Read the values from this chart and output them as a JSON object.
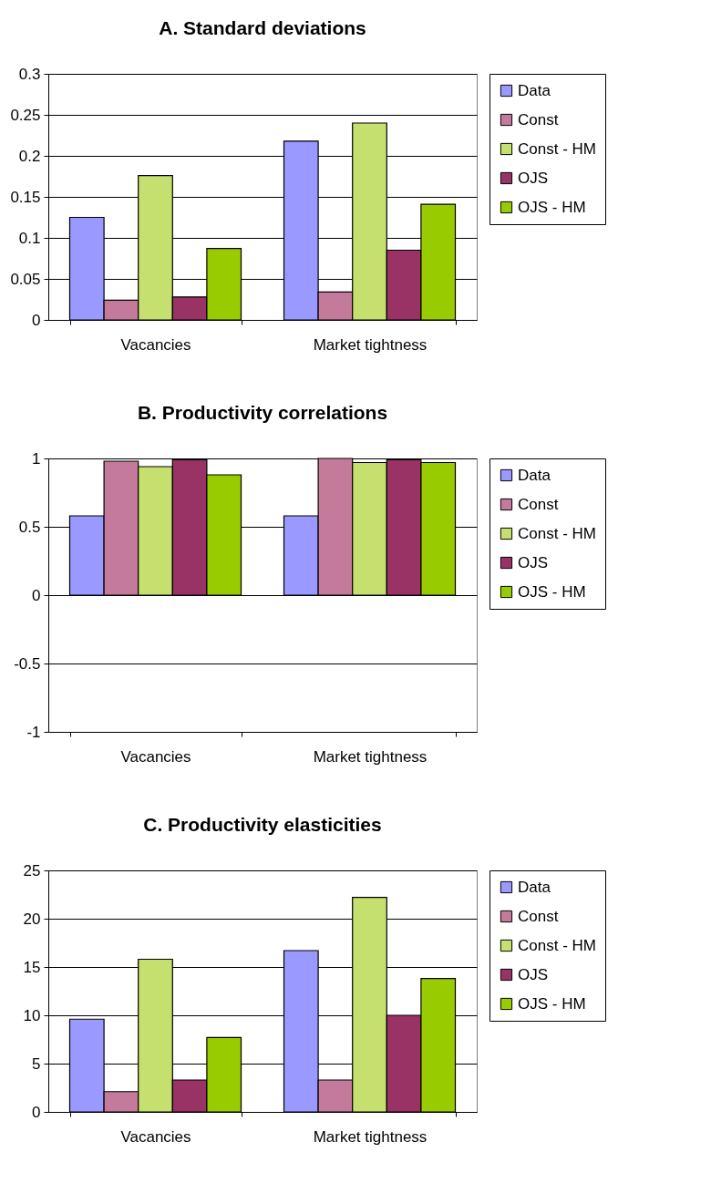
{
  "chart_data": [
    {
      "type": "bar",
      "title": "A. Standard deviations",
      "categories": [
        "Vacancies",
        "Market tightness"
      ],
      "series": [
        {
          "name": "Data",
          "color": "#9999ff",
          "values": [
            0.125,
            0.218
          ]
        },
        {
          "name": "Const",
          "color": "#c47a9b",
          "values": [
            0.024,
            0.034
          ]
        },
        {
          "name": "Const - HM",
          "color": "#c6e070",
          "values": [
            0.176,
            0.24
          ]
        },
        {
          "name": "OJS",
          "color": "#993366",
          "values": [
            0.028,
            0.085
          ]
        },
        {
          "name": "OJS - HM",
          "color": "#99cc00",
          "values": [
            0.087,
            0.141
          ]
        }
      ],
      "ylim": [
        0,
        0.3
      ],
      "yticks": [
        0,
        0.05,
        0.1,
        0.15,
        0.2,
        0.25,
        0.3
      ],
      "grid": "y",
      "legend": "right"
    },
    {
      "type": "bar",
      "title": "B. Productivity correlations",
      "categories": [
        "Vacancies",
        "Market tightness"
      ],
      "series": [
        {
          "name": "Data",
          "color": "#9999ff",
          "values": [
            0.58,
            0.58
          ]
        },
        {
          "name": "Const",
          "color": "#c47a9b",
          "values": [
            0.98,
            1.0
          ]
        },
        {
          "name": "Const - HM",
          "color": "#c6e070",
          "values": [
            0.94,
            0.97
          ]
        },
        {
          "name": "OJS",
          "color": "#993366",
          "values": [
            0.99,
            0.99
          ]
        },
        {
          "name": "OJS - HM",
          "color": "#99cc00",
          "values": [
            0.88,
            0.97
          ]
        }
      ],
      "ylim": [
        -1,
        1
      ],
      "yticks": [
        -1,
        -0.5,
        0,
        0.5,
        1
      ],
      "grid": "y",
      "legend": "right"
    },
    {
      "type": "bar",
      "title": "C. Productivity elasticities",
      "categories": [
        "Vacancies",
        "Market tightness"
      ],
      "series": [
        {
          "name": "Data",
          "color": "#9999ff",
          "values": [
            9.6,
            16.7
          ]
        },
        {
          "name": "Const",
          "color": "#c47a9b",
          "values": [
            2.1,
            3.3
          ]
        },
        {
          "name": "Const - HM",
          "color": "#c6e070",
          "values": [
            15.8,
            22.2
          ]
        },
        {
          "name": "OJS",
          "color": "#993366",
          "values": [
            3.3,
            10.0
          ]
        },
        {
          "name": "OJS - HM",
          "color": "#99cc00",
          "values": [
            7.7,
            13.8
          ]
        }
      ],
      "ylim": [
        0,
        25
      ],
      "yticks": [
        0,
        5,
        10,
        15,
        20,
        25
      ],
      "grid": "y",
      "legend": "right"
    }
  ]
}
